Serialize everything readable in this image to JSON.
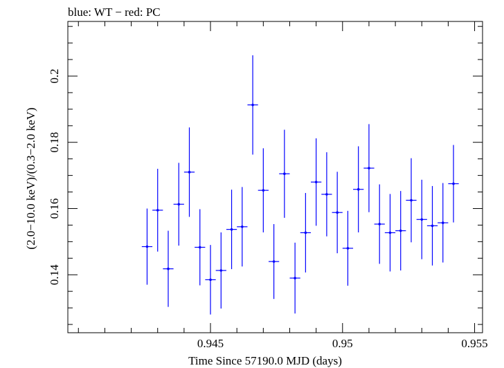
{
  "chart_data": {
    "type": "scatter",
    "title": "blue: WT − red: PC",
    "xlabel": "Time Since 57190.0 MJD (days)",
    "ylabel": "(2.0−10.0 keV)/(0.3−2.0 keV)",
    "xlim": [
      0.9396,
      0.9553
    ],
    "ylim": [
      0.1225,
      0.2165
    ],
    "x_ticks": [
      0.945,
      0.95,
      0.955
    ],
    "x_tick_labels": [
      "0.945",
      "0.95",
      "0.955"
    ],
    "y_ticks": [
      0.14,
      0.16,
      0.18,
      0.2
    ],
    "y_tick_labels": [
      "0.14",
      "0.16",
      "0.18",
      "0.2"
    ],
    "series": [
      {
        "name": "WT",
        "color": "#0000ff",
        "x": [
          0.9426,
          0.943,
          0.9434,
          0.9438,
          0.9442,
          0.9446,
          0.945,
          0.9454,
          0.9458,
          0.9462,
          0.9466,
          0.947,
          0.9474,
          0.9478,
          0.9482,
          0.9486,
          0.949,
          0.9494,
          0.9498,
          0.9502,
          0.9506,
          0.951,
          0.9514,
          0.9518,
          0.9522,
          0.9526,
          0.953,
          0.9534,
          0.9538,
          0.9542
        ],
        "xerr": 0.0002,
        "y": [
          0.1485,
          0.1595,
          0.1418,
          0.1613,
          0.171,
          0.1483,
          0.1385,
          0.1413,
          0.1537,
          0.1545,
          0.1913,
          0.1655,
          0.144,
          0.1705,
          0.139,
          0.1527,
          0.168,
          0.1643,
          0.1588,
          0.148,
          0.1658,
          0.1722,
          0.1553,
          0.1527,
          0.1533,
          0.1625,
          0.1567,
          0.1548,
          0.1557,
          0.1675
        ],
        "yerr": [
          0.0115,
          0.0125,
          0.0115,
          0.0125,
          0.0135,
          0.0115,
          0.0105,
          0.0115,
          0.012,
          0.012,
          0.015,
          0.0127,
          0.0113,
          0.0133,
          0.0107,
          0.012,
          0.0132,
          0.0127,
          0.0123,
          0.0113,
          0.013,
          0.0133,
          0.012,
          0.0117,
          0.012,
          0.0127,
          0.012,
          0.012,
          0.012,
          0.0117
        ]
      }
    ]
  }
}
